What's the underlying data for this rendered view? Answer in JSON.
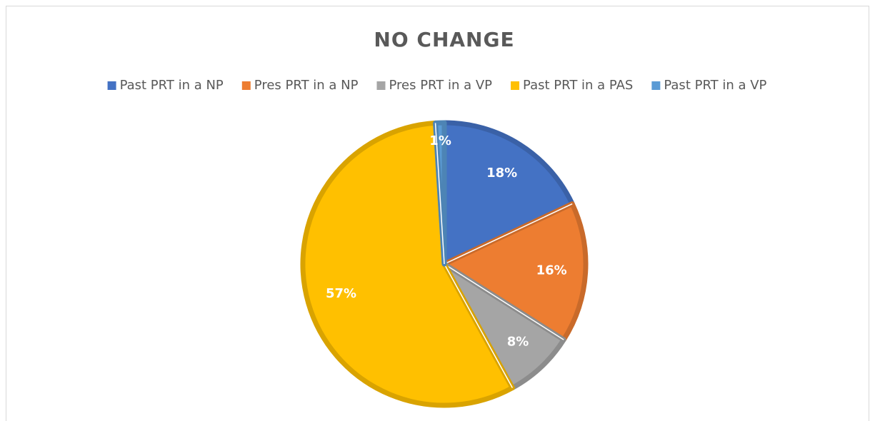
{
  "chart_data": {
    "type": "pie",
    "title": "NO CHANGE",
    "categories": [
      "Past PRT in a NP",
      "Pres PRT in a NP",
      "Pres PRT in a VP",
      "Past PRT in a PAS",
      "Past PRT in a VP"
    ],
    "values": [
      18,
      16,
      8,
      57,
      1
    ],
    "value_labels": [
      "18%",
      "16%",
      "8%",
      "57%",
      "1%"
    ],
    "colors": [
      "#4472c4",
      "#ed7d31",
      "#a5a5a5",
      "#ffc000",
      "#5b9bd5"
    ],
    "legend": "top"
  }
}
